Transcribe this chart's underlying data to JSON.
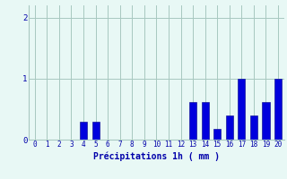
{
  "hours": [
    0,
    1,
    2,
    3,
    4,
    5,
    6,
    7,
    8,
    9,
    10,
    11,
    12,
    13,
    14,
    15,
    16,
    17,
    18,
    19,
    20
  ],
  "values": [
    0,
    0,
    0,
    0,
    0.3,
    0.3,
    0,
    0,
    0,
    0,
    0,
    0,
    0,
    0.62,
    0.62,
    0.18,
    0.4,
    1.0,
    0.4,
    0.62,
    1.0
  ],
  "bar_color": "#0000dd",
  "bar_edge_color": "#000088",
  "background_color": "#e8f8f5",
  "grid_color": "#a8c8c0",
  "xlabel": "Précipitations 1h ( mm )",
  "xlabel_color": "#0000aa",
  "tick_color": "#0000aa",
  "ylim": [
    0,
    2.2
  ],
  "yticks": [
    0,
    1,
    2
  ],
  "xlim": [
    -0.5,
    20.5
  ]
}
